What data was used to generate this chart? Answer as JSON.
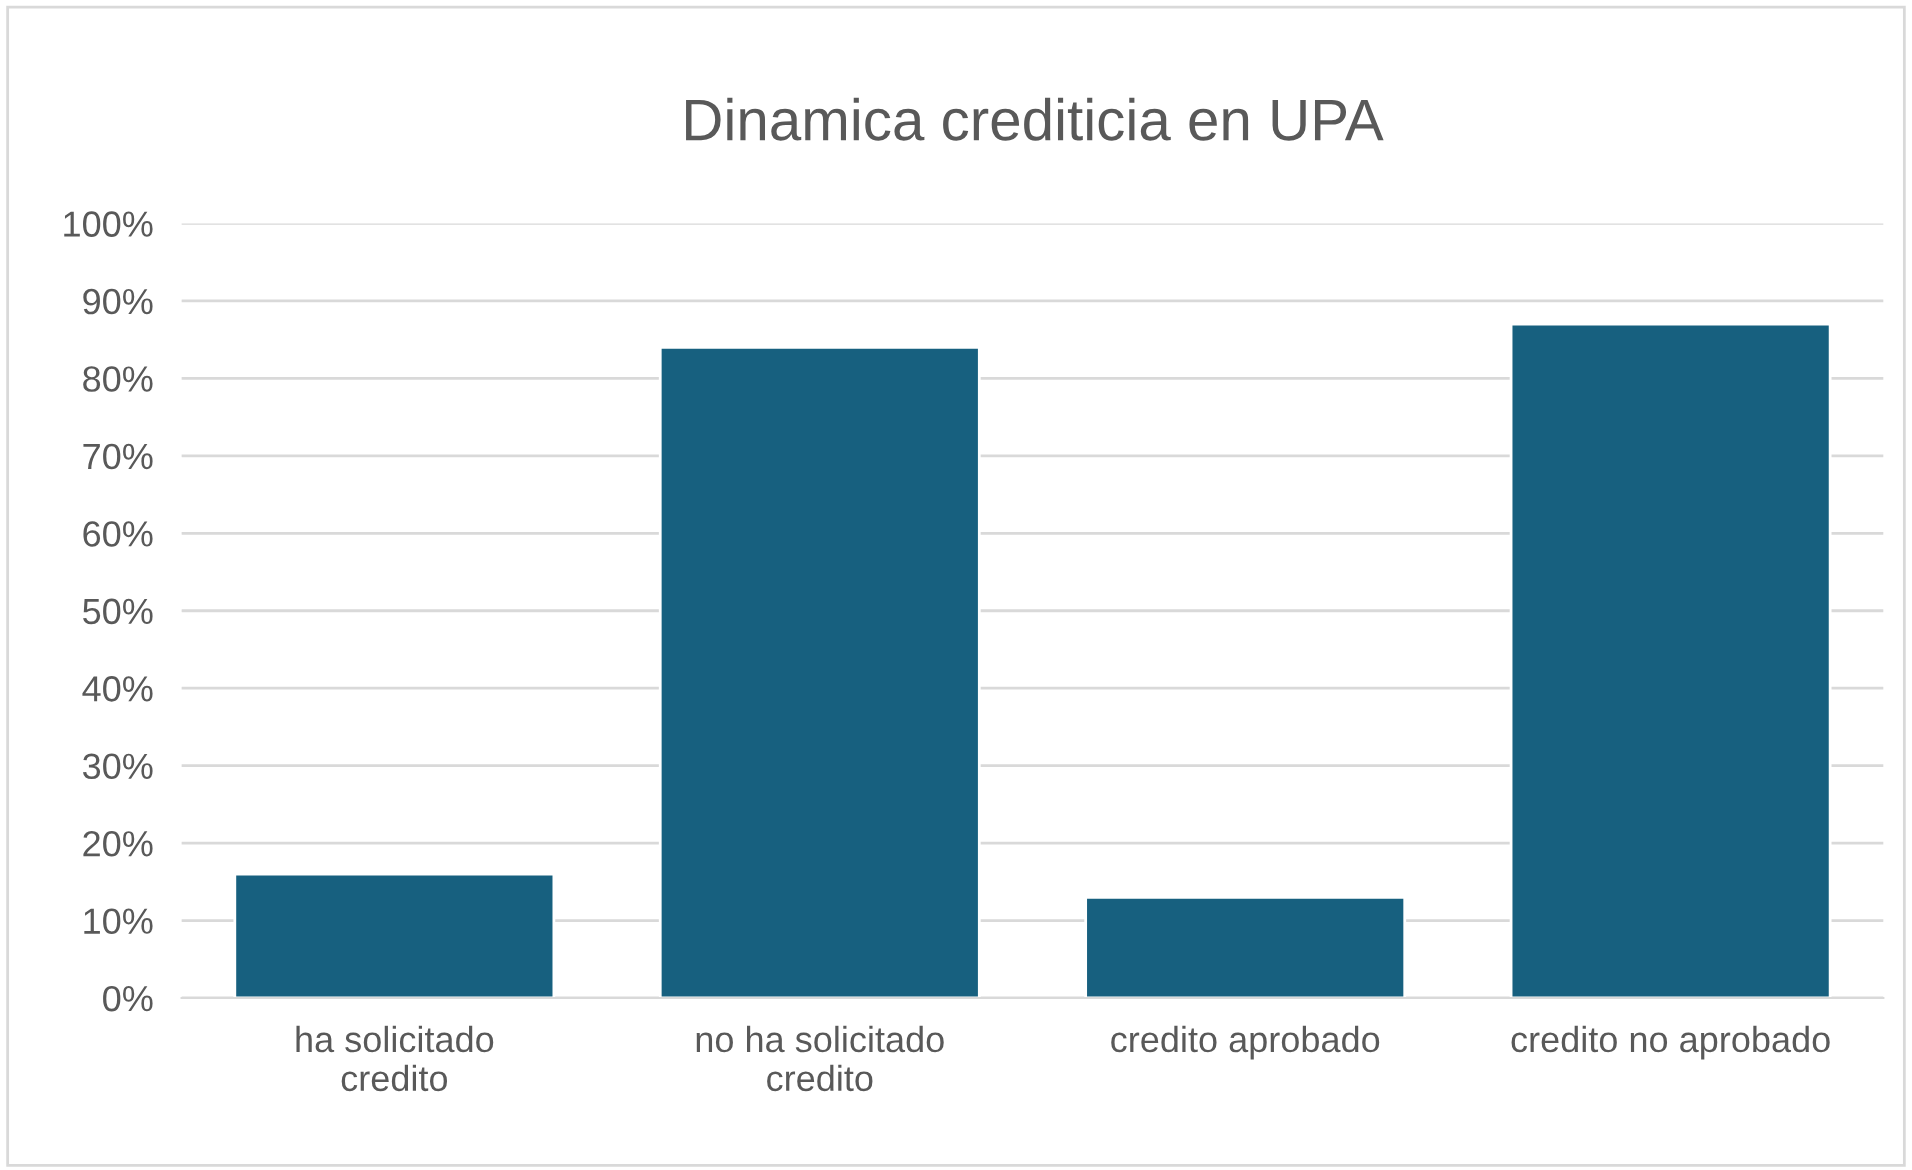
{
  "chart_data": {
    "type": "bar",
    "title": "Dinamica crediticia en UPA",
    "categories": [
      "ha solicitado credito",
      "no ha solicitado credito",
      "credito aprobado",
      "credito no aprobado"
    ],
    "values": [
      16,
      84,
      13,
      87
    ],
    "color": "#17607f",
    "ylim": [
      0,
      100
    ],
    "yticks": [
      {
        "value": 0,
        "label": "0%"
      },
      {
        "value": 10,
        "label": "10%"
      },
      {
        "value": 20,
        "label": "20%"
      },
      {
        "value": 30,
        "label": "30%"
      },
      {
        "value": 40,
        "label": "40%"
      },
      {
        "value": 50,
        "label": "50%"
      },
      {
        "value": 60,
        "label": "60%"
      },
      {
        "value": 70,
        "label": "70%"
      },
      {
        "value": 80,
        "label": "80%"
      },
      {
        "value": 90,
        "label": "90%"
      },
      {
        "value": 100,
        "label": "100%"
      }
    ],
    "grid": "y",
    "legend": false
  }
}
